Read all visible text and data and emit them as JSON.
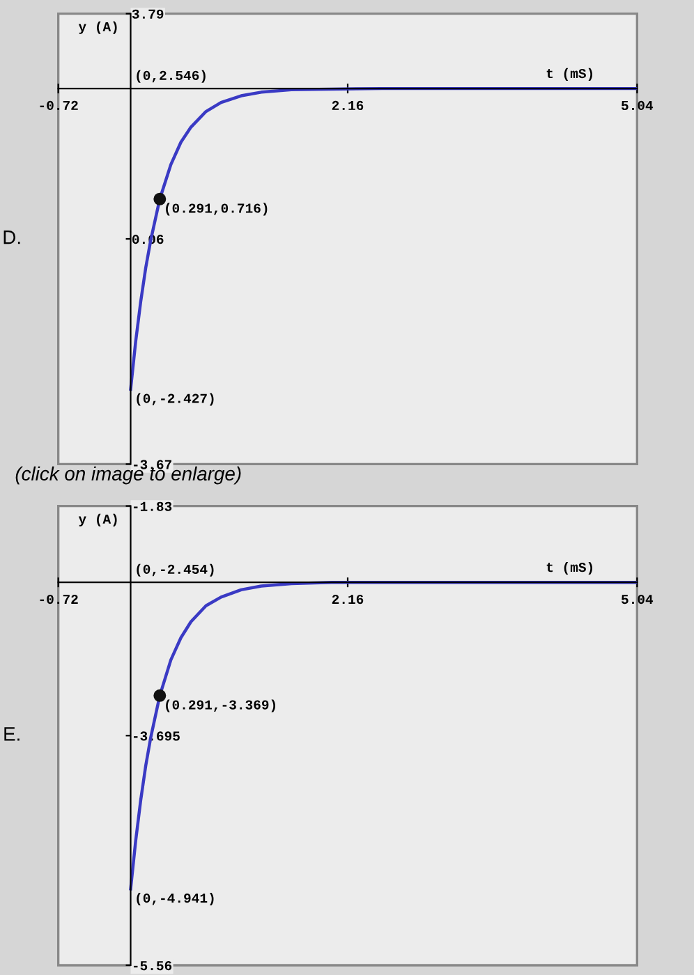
{
  "chart_data": [
    {
      "type": "line",
      "xlabel": "t (mS)",
      "ylabel": "y (A)",
      "xlim": [
        -0.72,
        5.04
      ],
      "ylim": [
        -3.67,
        3.79
      ],
      "xticks": [
        -0.72,
        2.16,
        5.04
      ],
      "yticks": [
        -3.67,
        0.06,
        3.79
      ],
      "series": [
        {
          "color": "#3a3ac4",
          "marker": "none",
          "x": [
            0,
            0.05,
            0.1,
            0.15,
            0.2,
            0.29,
            0.4,
            0.5,
            0.6,
            0.75,
            0.9,
            1.1,
            1.3,
            1.6,
            2.0,
            2.5,
            5.04
          ],
          "values": [
            -2.43,
            -1.64,
            -0.98,
            -0.42,
            0.04,
            0.72,
            1.29,
            1.66,
            1.91,
            2.17,
            2.32,
            2.43,
            2.49,
            2.53,
            2.54,
            2.55,
            2.55
          ]
        },
        {
          "type": "scatter",
          "color": "#111111",
          "marker": "circle",
          "x": [
            0.29
          ],
          "values": [
            0.72
          ]
        }
      ],
      "annotations": [
        "(0,2.546)",
        "(0.291,0.716)",
        "(0,-2.427)",
        "D.",
        "(click on image to enlarge)"
      ]
    },
    {
      "type": "line",
      "xlabel": "t (mS)",
      "ylabel": "y (A)",
      "xlim": [
        -0.72,
        5.04
      ],
      "ylim": [
        -5.56,
        -1.83
      ],
      "xticks": [
        -0.72,
        2.16,
        5.04
      ],
      "yticks": [
        -5.56,
        -3.695,
        -1.83
      ],
      "series": [
        {
          "color": "#3a3ac4",
          "marker": "none",
          "x": [
            0,
            0.05,
            0.1,
            0.15,
            0.2,
            0.29,
            0.4,
            0.5,
            0.6,
            0.75,
            0.9,
            1.1,
            1.3,
            1.6,
            2.0,
            2.5,
            5.04
          ],
          "values": [
            -4.94,
            -4.55,
            -4.22,
            -3.94,
            -3.71,
            -3.37,
            -3.08,
            -2.9,
            -2.77,
            -2.64,
            -2.57,
            -2.51,
            -2.48,
            -2.46,
            -2.45,
            -2.45,
            -2.45
          ]
        },
        {
          "type": "scatter",
          "color": "#111111",
          "marker": "circle",
          "x": [
            0.29
          ],
          "values": [
            -3.37
          ]
        }
      ],
      "annotations": [
        "(0,-2.454)",
        "(0.291,-3.369)",
        "(0,-4.941)",
        "E."
      ]
    }
  ]
}
